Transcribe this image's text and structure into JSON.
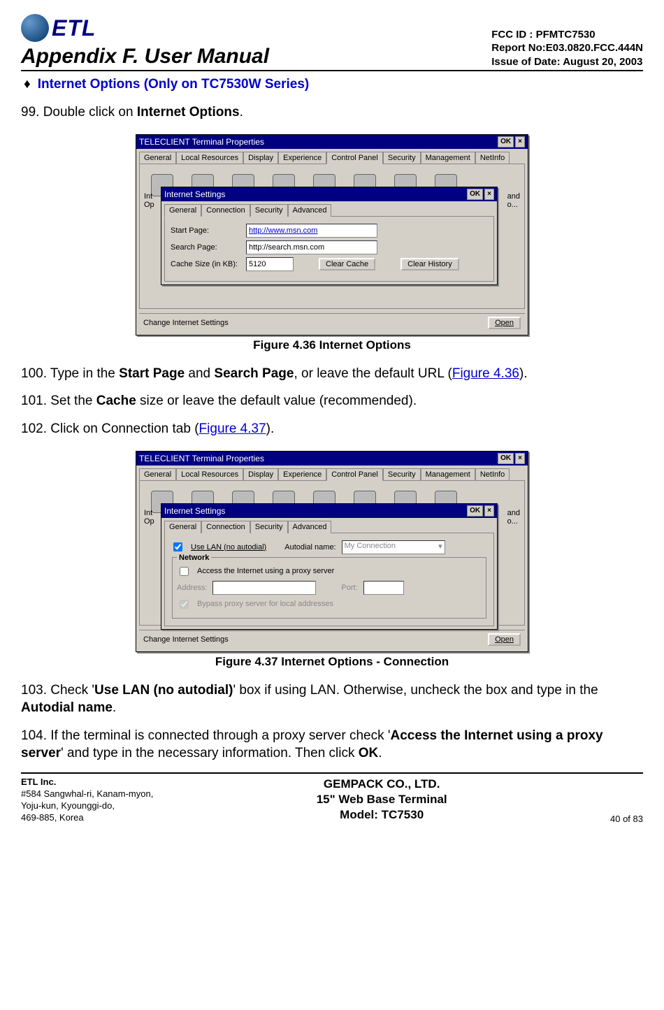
{
  "header": {
    "logo_text": "ETL",
    "appendix": "Appendix F. User Manual",
    "fcc": "FCC ID : PFMTC7530",
    "report": "Report No:E03.0820.FCC.444N",
    "issue": "Issue of Date: August 20, 2003"
  },
  "section_heading": "Internet Options (Only on TC7530W Series)",
  "step99_prefix": "99. Double click on ",
  "step99_bold": "Internet Options",
  "step99_suffix": ".",
  "figure436": {
    "outer_title": "TELECLIENT Terminal Properties",
    "ok": "OK",
    "close": "×",
    "outer_tabs": [
      "General",
      "Local Resources",
      "Display",
      "Experience",
      "Control Panel",
      "Security",
      "Management",
      "NetInfo"
    ],
    "outer_active": "Control Panel",
    "side_right_1": "and",
    "side_right_2": "o...",
    "side_left_1": "Int",
    "side_left_2": "Op",
    "inner_title": "Internet Settings",
    "inner_tabs": [
      "General",
      "Connection",
      "Security",
      "Advanced"
    ],
    "inner_active": "General",
    "start_label": "Start Page:",
    "start_value": "http://www.msn.com",
    "search_label": "Search Page:",
    "search_value": "http://search.msn.com",
    "cache_label": "Cache Size (in KB):",
    "cache_value": "5120",
    "clear_cache": "Clear Cache",
    "clear_history": "Clear History",
    "status": "Change Internet Settings",
    "open": "Open",
    "caption": "Figure 4.36      Internet Options"
  },
  "step100_a": "100.    Type in the ",
  "step100_b": "Start Page",
  "step100_c": " and ",
  "step100_d": "Search Page",
  "step100_e": ", or leave the default URL (",
  "step100_link": "Figure 4.36",
  "step100_f": ").",
  "step101_a": "101.    Set the ",
  "step101_b": "Cache",
  "step101_c": " size or leave the default value (recommended).",
  "step102_a": "102.    Click on Connection tab (",
  "step102_link": "Figure 4.37",
  "step102_b": ").",
  "figure437": {
    "outer_title": "TELECLIENT Terminal Properties",
    "inner_title": "Internet Settings",
    "inner_tabs": [
      "General",
      "Connection",
      "Security",
      "Advanced"
    ],
    "inner_active": "Connection",
    "use_lan": "Use LAN (no autodial)",
    "autodial_label": "Autodial name:",
    "autodial_value": "My Connection",
    "network_legend": "Network",
    "proxy_check": "Access the Internet using a proxy server",
    "address_label": "Address:",
    "port_label": "Port:",
    "bypass": "Bypass proxy server for local addresses",
    "status": "Change Internet Settings",
    "open": "Open",
    "caption": "Figure 4.37      Internet Options - Connection"
  },
  "step103_a": "103.    Check '",
  "step103_b": "Use LAN (no autodial)",
  "step103_c": "' box if using LAN.  Otherwise, uncheck the box and type in the ",
  "step103_d": "Autodial name",
  "step103_e": ".",
  "step104_a": "104.    If the terminal is connected through a proxy server check '",
  "step104_b": "Access the Internet using a proxy server",
  "step104_c": "' and type in the necessary information.  Then click ",
  "step104_d": "OK",
  "step104_e": ".",
  "footer": {
    "company": "ETL Inc.",
    "addr1": "#584 Sangwhal-ri, Kanam-myon,",
    "addr2": "Yoju-kun, Kyounggi-do,",
    "addr3": "469-885, Korea",
    "center1": "GEMPACK CO., LTD.",
    "center2": "15\" Web Base Terminal",
    "center3": "Model: TC7530",
    "page": "40 of 83"
  }
}
